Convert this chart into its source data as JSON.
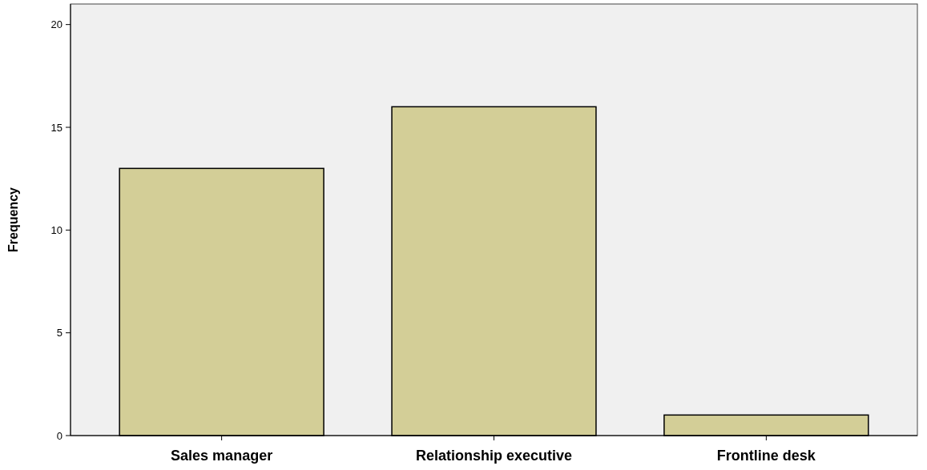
{
  "chart_data": {
    "type": "bar",
    "ylabel": "Frequency",
    "categories": [
      "Sales manager",
      "Relationship executive",
      "Frontline desk"
    ],
    "values": [
      13,
      16,
      1
    ],
    "color": "#d3ce97",
    "ylim": [
      0,
      21
    ],
    "yticks": [
      0,
      5,
      10,
      15,
      20
    ],
    "grid": false
  }
}
